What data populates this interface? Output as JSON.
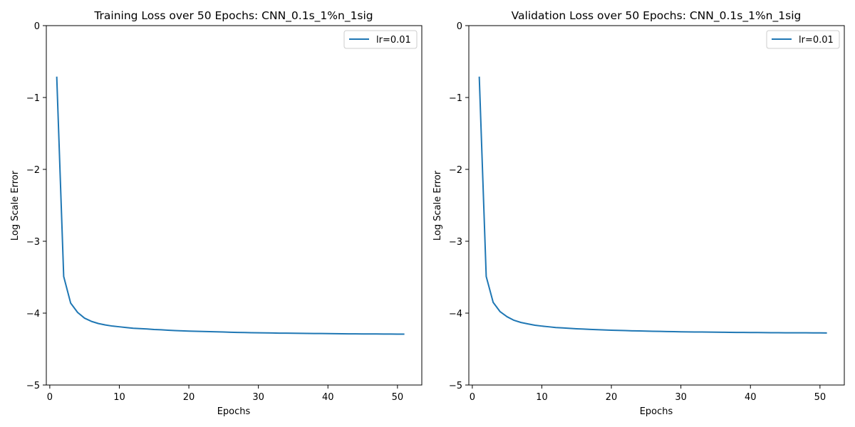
{
  "chart_data": [
    {
      "type": "line",
      "title": "Training Loss over 50 Epochs: CNN_0.1s_1%n_1sig",
      "xlabel": "Epochs",
      "ylabel": "Log Scale Error",
      "xlim": [
        -0.5,
        53.5
      ],
      "ylim": [
        -5,
        0
      ],
      "xticks": [
        0,
        10,
        20,
        30,
        40,
        50
      ],
      "yticks": [
        0,
        -1,
        -2,
        -3,
        -4,
        -5
      ],
      "xtick_labels": [
        "0",
        "10",
        "20",
        "30",
        "40",
        "50"
      ],
      "ytick_labels": [
        "0",
        "−1",
        "−2",
        "−3",
        "−4",
        "−5"
      ],
      "grid": false,
      "legend_position": "top-right",
      "colors": {
        "series": "#1f77b4"
      },
      "x": [
        1,
        2,
        3,
        4,
        5,
        6,
        7,
        8,
        9,
        10,
        11,
        12,
        13,
        14,
        15,
        16,
        17,
        18,
        19,
        20,
        21,
        22,
        23,
        24,
        25,
        26,
        27,
        28,
        29,
        30,
        31,
        32,
        33,
        34,
        35,
        36,
        37,
        38,
        39,
        40,
        41,
        42,
        43,
        44,
        45,
        46,
        47,
        48,
        49,
        50,
        51
      ],
      "series": [
        {
          "name": "lr=0.01",
          "values": [
            -0.71,
            -3.49,
            -3.86,
            -3.99,
            -4.07,
            -4.115,
            -4.145,
            -4.165,
            -4.18,
            -4.19,
            -4.2,
            -4.21,
            -4.215,
            -4.22,
            -4.228,
            -4.232,
            -4.238,
            -4.242,
            -4.246,
            -4.25,
            -4.252,
            -4.255,
            -4.258,
            -4.26,
            -4.263,
            -4.266,
            -4.268,
            -4.27,
            -4.272,
            -4.273,
            -4.275,
            -4.276,
            -4.278,
            -4.279,
            -4.28,
            -4.281,
            -4.282,
            -4.283,
            -4.284,
            -4.285,
            -4.286,
            -4.287,
            -4.288,
            -4.288,
            -4.289,
            -4.29,
            -4.29,
            -4.291,
            -4.291,
            -4.292,
            -4.292
          ]
        }
      ]
    },
    {
      "type": "line",
      "title": "Validation Loss over 50 Epochs: CNN_0.1s_1%n_1sig",
      "xlabel": "Epochs",
      "ylabel": "Log Scale Error",
      "xlim": [
        -0.5,
        53.5
      ],
      "ylim": [
        -5,
        0
      ],
      "xticks": [
        0,
        10,
        20,
        30,
        40,
        50
      ],
      "yticks": [
        0,
        -1,
        -2,
        -3,
        -4,
        -5
      ],
      "xtick_labels": [
        "0",
        "10",
        "20",
        "30",
        "40",
        "50"
      ],
      "ytick_labels": [
        "0",
        "−1",
        "−2",
        "−3",
        "−4",
        "−5"
      ],
      "grid": false,
      "legend_position": "top-right",
      "colors": {
        "series": "#1f77b4"
      },
      "x": [
        1,
        2,
        3,
        4,
        5,
        6,
        7,
        8,
        9,
        10,
        11,
        12,
        13,
        14,
        15,
        16,
        17,
        18,
        19,
        20,
        21,
        22,
        23,
        24,
        25,
        26,
        27,
        28,
        29,
        30,
        31,
        32,
        33,
        34,
        35,
        36,
        37,
        38,
        39,
        40,
        41,
        42,
        43,
        44,
        45,
        46,
        47,
        48,
        49,
        50,
        51
      ],
      "series": [
        {
          "name": "lr=0.01",
          "values": [
            -0.71,
            -3.49,
            -3.85,
            -3.98,
            -4.05,
            -4.1,
            -4.13,
            -4.15,
            -4.168,
            -4.18,
            -4.19,
            -4.2,
            -4.205,
            -4.212,
            -4.218,
            -4.222,
            -4.226,
            -4.23,
            -4.234,
            -4.237,
            -4.24,
            -4.243,
            -4.246,
            -4.248,
            -4.25,
            -4.252,
            -4.254,
            -4.256,
            -4.258,
            -4.26,
            -4.261,
            -4.262,
            -4.263,
            -4.264,
            -4.265,
            -4.266,
            -4.267,
            -4.268,
            -4.269,
            -4.27,
            -4.27,
            -4.271,
            -4.272,
            -4.272,
            -4.273,
            -4.273,
            -4.274,
            -4.274,
            -4.275,
            -4.275,
            -4.276
          ]
        }
      ]
    }
  ]
}
